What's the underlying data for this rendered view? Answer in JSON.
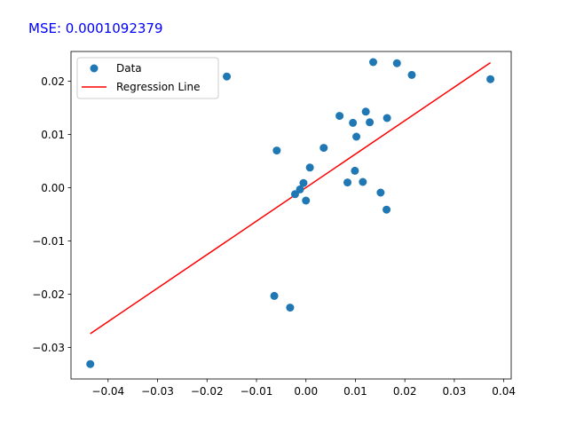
{
  "mse_text": "MSE: 0.0001092379",
  "chart_data": {
    "type": "scatter",
    "title": "",
    "xlabel": "",
    "ylabel": "",
    "xlim": [
      -0.0475,
      0.0415
    ],
    "ylim": [
      -0.0359,
      0.0256
    ],
    "xticks": [
      -0.04,
      -0.03,
      -0.02,
      -0.01,
      0.0,
      0.01,
      0.02,
      0.03,
      0.04
    ],
    "xtick_labels": [
      "−0.04",
      "−0.03",
      "−0.02",
      "−0.01",
      "0.00",
      "0.01",
      "0.02",
      "0.03",
      "0.04"
    ],
    "yticks": [
      -0.03,
      -0.02,
      -0.01,
      0.0,
      0.01,
      0.02
    ],
    "ytick_labels": [
      "−0.03",
      "−0.02",
      "−0.01",
      "0.00",
      "0.01",
      "0.02"
    ],
    "grid": false,
    "legend_position": "upper-left",
    "series": [
      {
        "name": "Data",
        "kind": "scatter",
        "color": "#1f77b4",
        "points": [
          [
            -0.0436,
            -0.0331
          ],
          [
            -0.016,
            0.0209
          ],
          [
            -0.0064,
            -0.0203
          ],
          [
            -0.0059,
            0.007
          ],
          [
            -0.0032,
            -0.0225
          ],
          [
            -0.0022,
            -0.0012
          ],
          [
            -0.0012,
            -0.0003
          ],
          [
            -0.0005,
            0.0009
          ],
          [
            0.0,
            -0.0024
          ],
          [
            0.0008,
            0.0038
          ],
          [
            0.0036,
            0.0075
          ],
          [
            0.0068,
            0.0135
          ],
          [
            0.0084,
            0.001
          ],
          [
            0.0095,
            0.0122
          ],
          [
            0.0099,
            0.0032
          ],
          [
            0.0102,
            0.0096
          ],
          [
            0.0115,
            0.0011
          ],
          [
            0.0121,
            0.0143
          ],
          [
            0.0129,
            0.0123
          ],
          [
            0.0136,
            0.0236
          ],
          [
            0.0151,
            -0.0009
          ],
          [
            0.0163,
            -0.0041
          ],
          [
            0.0164,
            0.0131
          ],
          [
            0.0184,
            0.0234
          ],
          [
            0.0214,
            0.0212
          ],
          [
            0.0373,
            0.0204
          ]
        ]
      },
      {
        "name": "Regression Line",
        "kind": "line",
        "color": "#ff0000",
        "points": [
          [
            -0.0436,
            -0.0274
          ],
          [
            0.0373,
            0.0235
          ]
        ]
      }
    ]
  }
}
